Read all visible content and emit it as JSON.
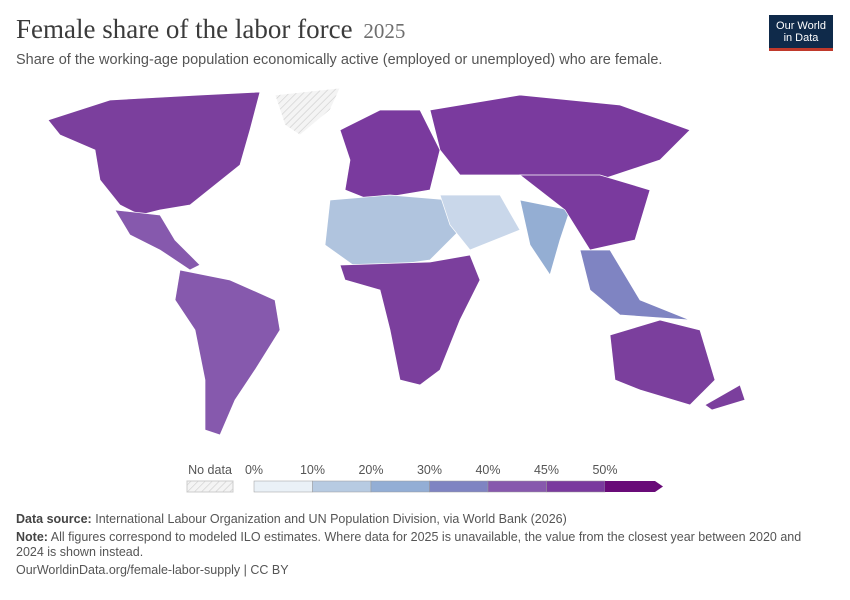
{
  "header": {
    "title": "Female share of the labor force",
    "year": "2025",
    "subtitle": "Share of the working-age population economically active (employed or unemployed) who are female."
  },
  "logo": {
    "line1": "Our World",
    "line2": "in Data"
  },
  "legend": {
    "no_data": "No data",
    "bins": [
      {
        "label": "0%",
        "color": "#eaf1f7"
      },
      {
        "label": "10%",
        "color": "#b7cbe2"
      },
      {
        "label": "20%",
        "color": "#93aed5"
      },
      {
        "label": "30%",
        "color": "#7f84c2"
      },
      {
        "label": "40%",
        "color": "#8758ad"
      },
      {
        "label": "45%",
        "color": "#7a3a9e"
      },
      {
        "label": "50%",
        "color": "#690b78"
      }
    ]
  },
  "footer": {
    "source_label": "Data source:",
    "source": "International Labour Organization and UN Population Division, via World Bank (2026)",
    "note_label": "Note:",
    "note": "All figures correspond to modeled ILO estimates. Where data for 2025 is unavailable, the value from the closest year between 2020 and 2024 is shown instead.",
    "url": "OurWorldinData.org/female-labor-supply | CC BY"
  }
}
